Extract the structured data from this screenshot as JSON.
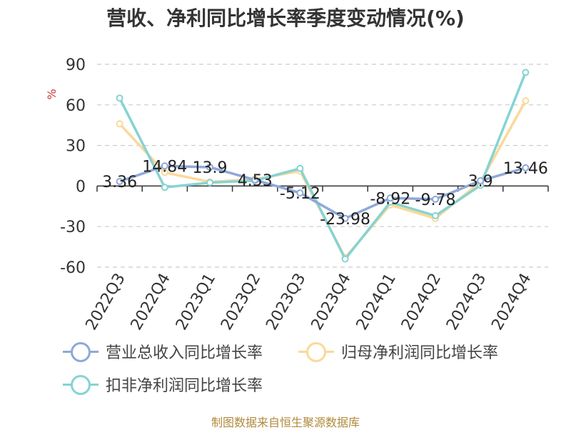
{
  "chart_data": {
    "type": "line",
    "title": "营收、净利同比增长率季度变动情况(%)",
    "ylabel": "%",
    "xlabel": "",
    "categories": [
      "2022Q3",
      "2022Q4",
      "2023Q1",
      "2023Q2",
      "2023Q3",
      "2023Q4",
      "2024Q1",
      "2024Q2",
      "2024Q3",
      "2024Q4"
    ],
    "yticks": [
      "90",
      "60",
      "30",
      "0",
      "-30",
      "-60"
    ],
    "ylim": [
      -60,
      90
    ],
    "grid": true,
    "legend_position": "bottom",
    "series": [
      {
        "name": "营业总收入同比增长率",
        "color": "#8fa8d8",
        "values": [
          3.36,
          14.84,
          13.9,
          4.53,
          -5.12,
          -23.98,
          -8.92,
          -9.78,
          3.9,
          13.46
        ],
        "labels": [
          "3.36",
          "14.84",
          "13.9",
          "4.53",
          "-5.12",
          "-23.98",
          "-8.92",
          "-9.78",
          "3.9",
          "13.46"
        ]
      },
      {
        "name": "归母净利润同比增长率",
        "color": "#fad998",
        "values": [
          46,
          10,
          3,
          5,
          11,
          -53,
          -14,
          -24,
          3,
          63
        ]
      },
      {
        "name": "扣非净利润同比增长率",
        "color": "#86d3d3",
        "values": [
          65,
          -1,
          2.5,
          4,
          13,
          -54,
          -12,
          -22,
          0.5,
          84
        ]
      }
    ]
  },
  "source_text": "制图数据来自恒生聚源数据库"
}
